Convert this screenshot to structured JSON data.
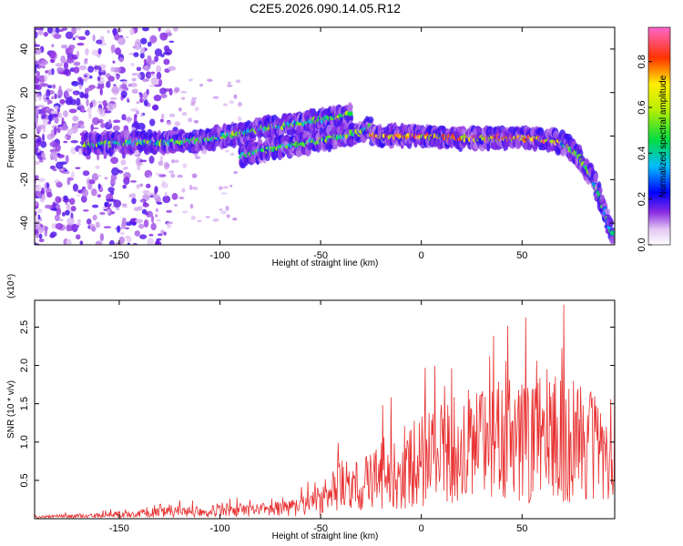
{
  "title": "C2E5.2026.090.14.05.R12",
  "chart_data": [
    {
      "type": "heatmap",
      "xlabel": "Height of straight line (km)",
      "ylabel": "Frequency (Hz)",
      "xlim": [
        -192,
        96
      ],
      "ylim": [
        -50,
        50
      ],
      "x_ticks": [
        -150,
        -100,
        -50,
        0,
        50
      ],
      "y_ticks": [
        -40,
        -20,
        0,
        20,
        40
      ],
      "colorbar": {
        "label": "Normalized spectral amplitude",
        "ticks": [
          0.0,
          0.2,
          0.4,
          0.6,
          0.8
        ],
        "range": [
          0,
          0.95
        ]
      },
      "ridges": [
        {
          "x": [
            -168,
            -150,
            -130,
            -110,
            -90,
            -75,
            -60,
            -45,
            -35
          ],
          "y": [
            -4,
            -3,
            -3,
            -2,
            1,
            4,
            6,
            8,
            10
          ]
        },
        {
          "x": [
            -90,
            -80,
            -70,
            -60,
            -50,
            -40,
            -30,
            -25
          ],
          "y": [
            -9,
            -7,
            -5,
            -4,
            -2,
            0,
            2,
            4
          ]
        },
        {
          "x": [
            -25,
            -15,
            0,
            20,
            40,
            55,
            65,
            72,
            78,
            84,
            88,
            92,
            95
          ],
          "y": [
            0,
            0,
            0,
            -1,
            -1,
            -1,
            -2,
            -4,
            -9,
            -18,
            -26,
            -37,
            -46
          ]
        }
      ]
    },
    {
      "type": "line",
      "xlabel": "Height of straight line (km)",
      "ylabel": "SNR (10 * v/v)",
      "y_multiplier": "(x10⁴)",
      "xlim": [
        -192,
        96
      ],
      "ylim": [
        0,
        2.85
      ],
      "x_ticks": [
        -150,
        -100,
        -50,
        0,
        50
      ],
      "y_ticks": [
        0.5,
        1.0,
        1.5,
        2.0,
        2.5
      ],
      "envelope": {
        "x": [
          -192,
          -160,
          -140,
          -120,
          -100,
          -80,
          -60,
          -50,
          -40,
          -30,
          -20,
          -10,
          0,
          10,
          20,
          30,
          40,
          50,
          60,
          70,
          80,
          90,
          96
        ],
        "y": [
          0.03,
          0.05,
          0.09,
          0.12,
          0.14,
          0.14,
          0.2,
          0.32,
          0.55,
          0.55,
          0.75,
          0.85,
          0.95,
          1.1,
          1.2,
          1.25,
          1.3,
          1.3,
          1.35,
          1.35,
          1.3,
          1.2,
          1.1
        ]
      },
      "color": "#e83030"
    }
  ]
}
